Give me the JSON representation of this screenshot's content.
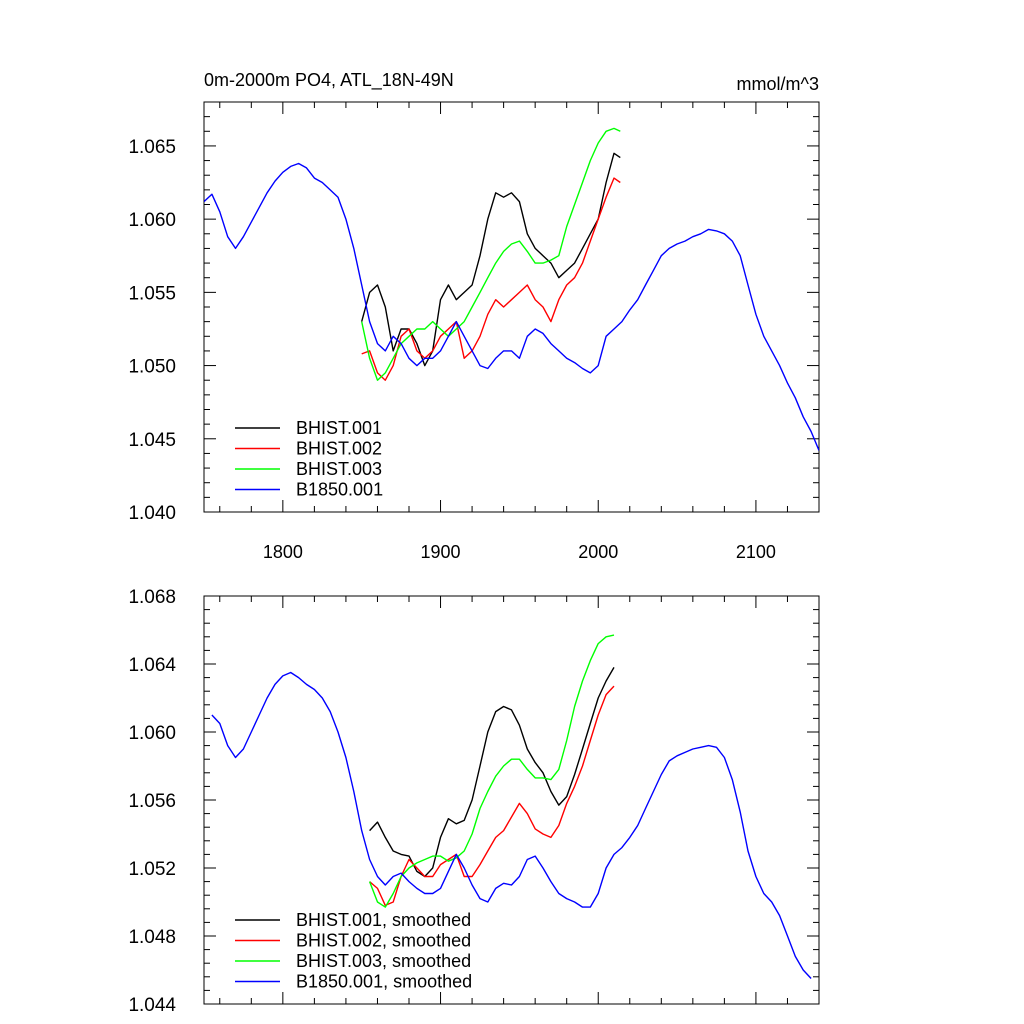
{
  "chart_data": [
    {
      "type": "line",
      "title": "0m-2000m PO4, ATL_18N-49N",
      "units": "mmol/m^3",
      "xlim": [
        1750,
        2140
      ],
      "ylim": [
        1.04,
        1.068
      ],
      "xticks": [
        1800,
        1900,
        2000,
        2100
      ],
      "xtick_labels": [
        "1800",
        "1900",
        "2000",
        "2100"
      ],
      "yticks": [
        1.04,
        1.045,
        1.05,
        1.055,
        1.06,
        1.065
      ],
      "ytick_labels": [
        "1.040",
        "1.045",
        "1.050",
        "1.055",
        "1.060",
        "1.065"
      ],
      "legend_position": "bottom-left",
      "series": [
        {
          "name": "BHIST.001",
          "color": "#000000",
          "x": [
            1850,
            1855,
            1860,
            1865,
            1870,
            1875,
            1880,
            1885,
            1890,
            1895,
            1900,
            1905,
            1910,
            1915,
            1920,
            1925,
            1930,
            1935,
            1940,
            1945,
            1950,
            1955,
            1960,
            1965,
            1970,
            1975,
            1980,
            1985,
            1990,
            1995,
            2000,
            2005,
            2010,
            2014
          ],
          "y": [
            1.053,
            1.055,
            1.0555,
            1.054,
            1.051,
            1.0525,
            1.0525,
            1.0515,
            1.05,
            1.051,
            1.0545,
            1.0555,
            1.0545,
            1.055,
            1.0555,
            1.0575,
            1.06,
            1.0618,
            1.0615,
            1.0618,
            1.0612,
            1.059,
            1.058,
            1.0575,
            1.057,
            1.056,
            1.0565,
            1.057,
            1.058,
            1.059,
            1.06,
            1.0625,
            1.0645,
            1.0642
          ]
        },
        {
          "name": "BHIST.002",
          "color": "#ff0000",
          "x": [
            1850,
            1855,
            1860,
            1865,
            1870,
            1875,
            1880,
            1885,
            1890,
            1895,
            1900,
            1905,
            1910,
            1915,
            1920,
            1925,
            1930,
            1935,
            1940,
            1945,
            1950,
            1955,
            1960,
            1965,
            1970,
            1975,
            1980,
            1985,
            1990,
            1995,
            2000,
            2005,
            2010,
            2014
          ],
          "y": [
            1.0508,
            1.051,
            1.0495,
            1.049,
            1.05,
            1.052,
            1.0525,
            1.051,
            1.0505,
            1.051,
            1.052,
            1.0525,
            1.053,
            1.0505,
            1.051,
            1.052,
            1.0535,
            1.0545,
            1.054,
            1.0545,
            1.055,
            1.0555,
            1.0545,
            1.054,
            1.053,
            1.0545,
            1.0555,
            1.056,
            1.057,
            1.0585,
            1.06,
            1.0615,
            1.0628,
            1.0625
          ]
        },
        {
          "name": "BHIST.003",
          "color": "#00ff00",
          "x": [
            1850,
            1855,
            1860,
            1865,
            1870,
            1875,
            1880,
            1885,
            1890,
            1895,
            1900,
            1905,
            1910,
            1915,
            1920,
            1925,
            1930,
            1935,
            1940,
            1945,
            1950,
            1955,
            1960,
            1965,
            1970,
            1975,
            1980,
            1985,
            1990,
            1995,
            2000,
            2005,
            2010,
            2014
          ],
          "y": [
            1.053,
            1.0505,
            1.049,
            1.0495,
            1.0505,
            1.0515,
            1.052,
            1.0525,
            1.0525,
            1.053,
            1.0525,
            1.052,
            1.0525,
            1.053,
            1.054,
            1.055,
            1.056,
            1.057,
            1.0578,
            1.0583,
            1.0585,
            1.0578,
            1.057,
            1.057,
            1.0572,
            1.0575,
            1.0595,
            1.061,
            1.0625,
            1.064,
            1.0652,
            1.066,
            1.0662,
            1.066
          ]
        },
        {
          "name": "B1850.001",
          "color": "#0000ff",
          "x": [
            1750,
            1755,
            1760,
            1765,
            1770,
            1775,
            1780,
            1785,
            1790,
            1795,
            1800,
            1805,
            1810,
            1815,
            1820,
            1825,
            1830,
            1835,
            1840,
            1845,
            1850,
            1855,
            1860,
            1865,
            1870,
            1875,
            1880,
            1885,
            1890,
            1895,
            1900,
            1905,
            1910,
            1915,
            1920,
            1925,
            1930,
            1935,
            1940,
            1945,
            1950,
            1955,
            1960,
            1965,
            1970,
            1975,
            1980,
            1985,
            1990,
            1995,
            2000,
            2005,
            2010,
            2015,
            2020,
            2025,
            2030,
            2035,
            2040,
            2045,
            2050,
            2055,
            2060,
            2065,
            2070,
            2075,
            2080,
            2085,
            2090,
            2095,
            2100,
            2105,
            2110,
            2115,
            2120,
            2125,
            2130,
            2135,
            2140
          ],
          "y": [
            1.0612,
            1.0617,
            1.0605,
            1.0588,
            1.058,
            1.0588,
            1.0598,
            1.0608,
            1.0618,
            1.0626,
            1.0632,
            1.0636,
            1.0638,
            1.0635,
            1.0628,
            1.0625,
            1.062,
            1.0615,
            1.06,
            1.058,
            1.0555,
            1.053,
            1.0515,
            1.051,
            1.052,
            1.0515,
            1.0505,
            1.05,
            1.0505,
            1.0505,
            1.051,
            1.052,
            1.053,
            1.052,
            1.051,
            1.05,
            1.0498,
            1.0505,
            1.051,
            1.051,
            1.0505,
            1.052,
            1.0525,
            1.0522,
            1.0515,
            1.051,
            1.0505,
            1.0502,
            1.0498,
            1.0495,
            1.05,
            1.052,
            1.0525,
            1.053,
            1.0538,
            1.0545,
            1.0555,
            1.0565,
            1.0575,
            1.058,
            1.0583,
            1.0585,
            1.0588,
            1.059,
            1.0593,
            1.0592,
            1.059,
            1.0585,
            1.0575,
            1.0555,
            1.0535,
            1.052,
            1.051,
            1.05,
            1.0488,
            1.0478,
            1.0465,
            1.0455,
            1.0442
          ]
        }
      ]
    },
    {
      "type": "line",
      "xlim": [
        1750,
        2140
      ],
      "ylim": [
        1.044,
        1.068
      ],
      "xticks": [
        1800,
        1900,
        2000,
        2100
      ],
      "yticks": [
        1.044,
        1.048,
        1.052,
        1.056,
        1.06,
        1.064,
        1.068
      ],
      "ytick_labels": [
        "1.044",
        "1.048",
        "1.052",
        "1.056",
        "1.060",
        "1.064",
        "1.068"
      ],
      "legend_position": "bottom-left",
      "series": [
        {
          "name": "BHIST.001, smoothed",
          "color": "#000000",
          "x": [
            1855,
            1860,
            1865,
            1870,
            1875,
            1880,
            1885,
            1890,
            1895,
            1900,
            1905,
            1910,
            1915,
            1920,
            1925,
            1930,
            1935,
            1940,
            1945,
            1950,
            1955,
            1960,
            1965,
            1970,
            1975,
            1980,
            1985,
            1990,
            1995,
            2000,
            2005,
            2010
          ],
          "y": [
            1.0542,
            1.0547,
            1.0538,
            1.053,
            1.0528,
            1.0527,
            1.0518,
            1.0515,
            1.052,
            1.0538,
            1.0549,
            1.0546,
            1.0548,
            1.056,
            1.058,
            1.06,
            1.0612,
            1.0615,
            1.0613,
            1.0604,
            1.059,
            1.0582,
            1.0576,
            1.0565,
            1.0557,
            1.0562,
            1.0575,
            1.059,
            1.0605,
            1.062,
            1.063,
            1.0638
          ]
        },
        {
          "name": "BHIST.002, smoothed",
          "color": "#ff0000",
          "x": [
            1855,
            1860,
            1865,
            1870,
            1875,
            1880,
            1885,
            1890,
            1895,
            1900,
            1905,
            1910,
            1915,
            1920,
            1925,
            1930,
            1935,
            1940,
            1945,
            1950,
            1955,
            1960,
            1965,
            1970,
            1975,
            1980,
            1985,
            1990,
            1995,
            2000,
            2005,
            2010
          ],
          "y": [
            1.0512,
            1.0508,
            1.0498,
            1.05,
            1.0515,
            1.0525,
            1.052,
            1.0515,
            1.0515,
            1.0522,
            1.0525,
            1.0528,
            1.0515,
            1.0515,
            1.0522,
            1.053,
            1.0538,
            1.0542,
            1.055,
            1.0558,
            1.0552,
            1.0543,
            1.054,
            1.0538,
            1.0545,
            1.0558,
            1.0568,
            1.058,
            1.0595,
            1.061,
            1.0622,
            1.0627
          ]
        },
        {
          "name": "BHIST.003, smoothed",
          "color": "#00ff00",
          "x": [
            1855,
            1860,
            1865,
            1870,
            1875,
            1880,
            1885,
            1890,
            1895,
            1900,
            1905,
            1910,
            1915,
            1920,
            1925,
            1930,
            1935,
            1940,
            1945,
            1950,
            1955,
            1960,
            1965,
            1970,
            1975,
            1980,
            1985,
            1990,
            1995,
            2000,
            2005,
            2010
          ],
          "y": [
            1.0512,
            1.05,
            1.0497,
            1.0505,
            1.0515,
            1.052,
            1.0523,
            1.0525,
            1.0527,
            1.0527,
            1.0524,
            1.0526,
            1.053,
            1.054,
            1.0555,
            1.0565,
            1.0574,
            1.058,
            1.0584,
            1.0584,
            1.0578,
            1.0573,
            1.0573,
            1.0572,
            1.0578,
            1.0595,
            1.0615,
            1.063,
            1.0642,
            1.0652,
            1.0656,
            1.0657
          ]
        },
        {
          "name": "B1850.001, smoothed",
          "color": "#0000ff",
          "x": [
            1755,
            1760,
            1765,
            1770,
            1775,
            1780,
            1785,
            1790,
            1795,
            1800,
            1805,
            1810,
            1815,
            1820,
            1825,
            1830,
            1835,
            1840,
            1845,
            1850,
            1855,
            1860,
            1865,
            1870,
            1875,
            1880,
            1885,
            1890,
            1895,
            1900,
            1905,
            1910,
            1915,
            1920,
            1925,
            1930,
            1935,
            1940,
            1945,
            1950,
            1955,
            1960,
            1965,
            1970,
            1975,
            1980,
            1985,
            1990,
            1995,
            2000,
            2005,
            2010,
            2015,
            2020,
            2025,
            2030,
            2035,
            2040,
            2045,
            2050,
            2055,
            2060,
            2065,
            2070,
            2075,
            2080,
            2085,
            2090,
            2095,
            2100,
            2105,
            2110,
            2115,
            2120,
            2125,
            2130,
            2135
          ],
          "y": [
            1.061,
            1.0605,
            1.0592,
            1.0585,
            1.059,
            1.06,
            1.061,
            1.062,
            1.0628,
            1.0633,
            1.0635,
            1.0632,
            1.0628,
            1.0625,
            1.062,
            1.0612,
            1.06,
            1.0585,
            1.0565,
            1.0542,
            1.0525,
            1.0515,
            1.051,
            1.0515,
            1.0517,
            1.0512,
            1.0508,
            1.0505,
            1.0505,
            1.0508,
            1.0518,
            1.0528,
            1.052,
            1.051,
            1.0502,
            1.05,
            1.0508,
            1.0511,
            1.051,
            1.0515,
            1.0525,
            1.0527,
            1.052,
            1.0512,
            1.0505,
            1.0502,
            1.05,
            1.0497,
            1.0497,
            1.0505,
            1.052,
            1.0528,
            1.0532,
            1.0538,
            1.0545,
            1.0555,
            1.0565,
            1.0575,
            1.0583,
            1.0586,
            1.0588,
            1.059,
            1.0591,
            1.0592,
            1.0591,
            1.0585,
            1.0572,
            1.0553,
            1.053,
            1.0515,
            1.0505,
            1.05,
            1.0492,
            1.048,
            1.0468,
            1.046,
            1.0455
          ]
        }
      ]
    }
  ]
}
